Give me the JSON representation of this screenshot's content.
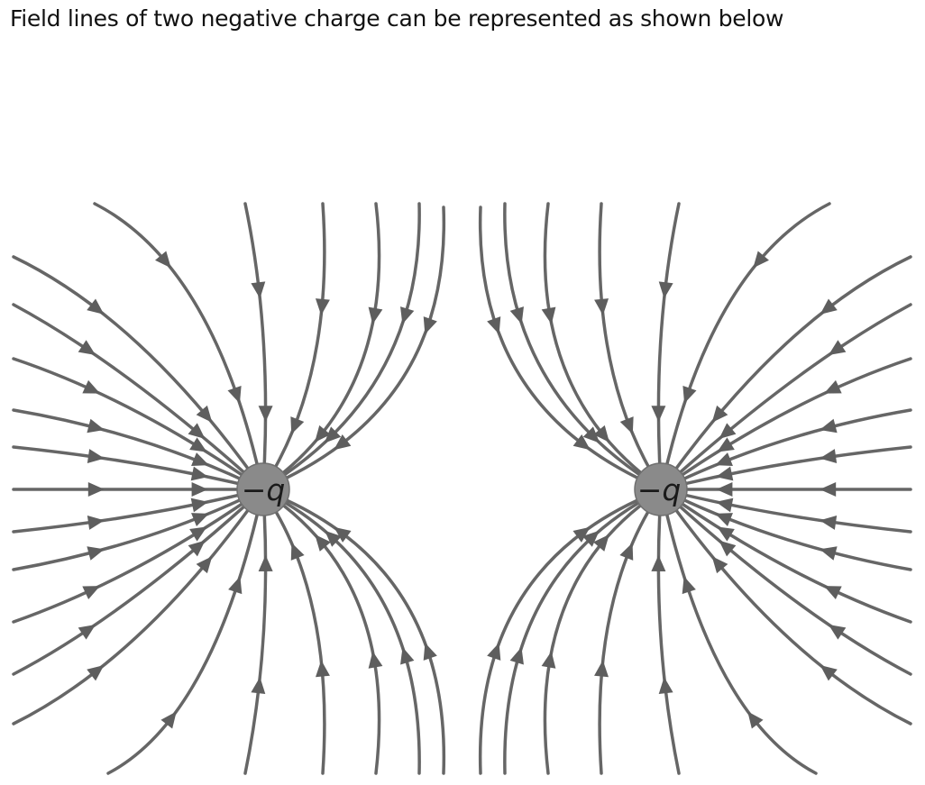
{
  "question": {
    "text": "Field lines of two negative charge can be represented as shown below"
  },
  "diagram": {
    "charges": [
      {
        "label": "−q",
        "sign": "negative"
      },
      {
        "label": "−q",
        "sign": "negative"
      }
    ],
    "field_line_direction": "toward charges",
    "colors": {
      "line": "#666666",
      "arrow": "#5e5e5e",
      "charge_fill": "#8a8a8a",
      "charge_edge": "#6f6f6f"
    }
  }
}
